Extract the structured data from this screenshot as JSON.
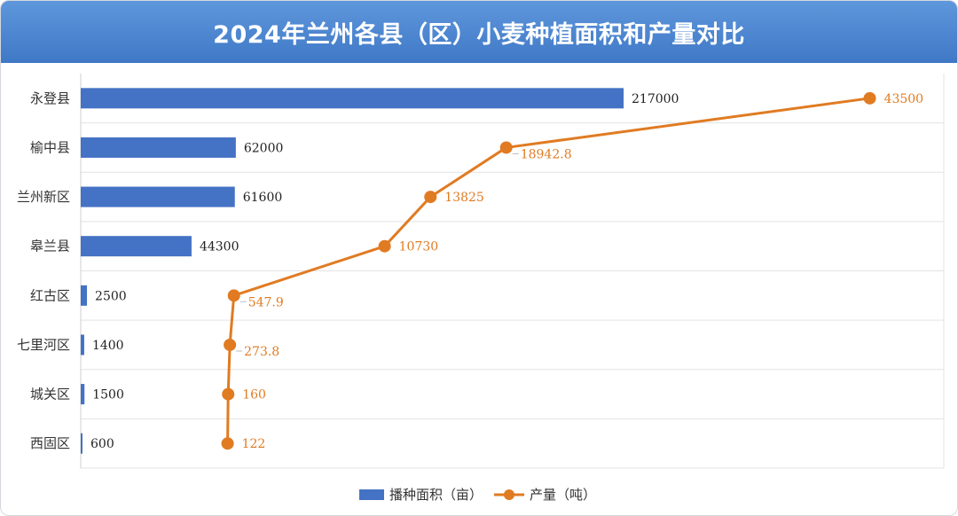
{
  "chart_data": {
    "type": "bar",
    "orientation": "horizontal",
    "title": "2024年兰州各县（区）小麦种植面积和产量对比",
    "categories": [
      "永登县",
      "榆中县",
      "兰州新区",
      "皋兰县",
      "红古区",
      "七里河区",
      "城关区",
      "西固区"
    ],
    "series": [
      {
        "name": "播种面积（亩）",
        "kind": "bar",
        "color": "#4472c4",
        "values": [
          217000,
          62000,
          61600,
          44300,
          2500,
          1400,
          1500,
          600
        ],
        "labels": [
          "217000",
          "62000",
          "61600",
          "44300",
          "2500",
          "1400",
          "1500",
          "600"
        ],
        "xlim": [
          0,
          345000
        ]
      },
      {
        "name": "产量（吨）",
        "kind": "line",
        "color": "#e07b22",
        "values": [
          43500,
          18942.8,
          13825,
          10730,
          547.9,
          273.8,
          160,
          122
        ],
        "labels": [
          "43500",
          "18942.8",
          "13825",
          "10730",
          "547.9",
          "273.8",
          "160",
          "122"
        ],
        "xlim": [
          -9800,
          48500
        ]
      }
    ],
    "grid": true,
    "legend_position": "bottom"
  }
}
